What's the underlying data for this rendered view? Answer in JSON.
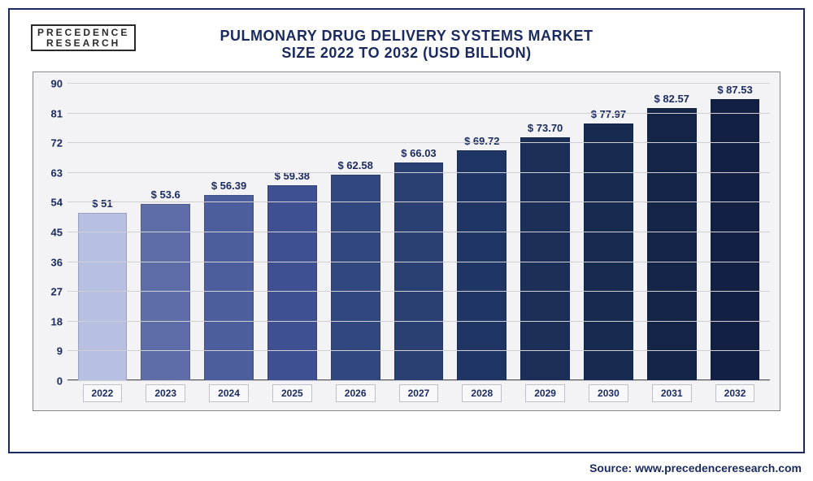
{
  "brand": {
    "line1": "PRECEDENCE",
    "line2": "RESEARCH"
  },
  "title": {
    "line1": "PULMONARY DRUG DELIVERY SYSTEMS MARKET",
    "line2": "SIZE 2022 TO 2032 (USD BILLION)",
    "fontsize_line1": 18,
    "fontsize_line2": 18,
    "color": "#1a2a5e"
  },
  "source": "Source: www.precedenceresearch.com",
  "chart": {
    "type": "bar",
    "background_color": "#f3f3f5",
    "grid_color": "#cfcfd4",
    "axis_color": "#555555",
    "label_color": "#1a2a5e",
    "value_prefix": "$ ",
    "ylim": [
      0,
      90
    ],
    "yticks": [
      0,
      9,
      18,
      27,
      36,
      45,
      54,
      63,
      72,
      81,
      90
    ],
    "bar_width_ratio": 0.78,
    "value_fontsize": 13,
    "tick_fontsize": 13,
    "categories": [
      "2022",
      "2023",
      "2024",
      "2025",
      "2026",
      "2027",
      "2028",
      "2029",
      "2030",
      "2031",
      "2032"
    ],
    "values_display": [
      "51",
      "53.6",
      "56.39",
      "59.38",
      "62.58",
      "66.03",
      "69.72",
      "73.70",
      "77.97",
      "82.57",
      "87.53"
    ],
    "values": [
      51,
      53.6,
      56.39,
      59.38,
      62.58,
      66.03,
      69.72,
      73.7,
      77.97,
      82.57,
      87.53
    ],
    "bar_colors": [
      "#b7c0e2",
      "#5e6da8",
      "#4d5e9e",
      "#3e5091",
      "#31487f",
      "#2a4072",
      "#1f3563",
      "#1b2f58",
      "#172a50",
      "#142548",
      "#122143"
    ]
  },
  "frame": {
    "border_color": "#1a2a5e",
    "background_color": "#ffffff"
  }
}
